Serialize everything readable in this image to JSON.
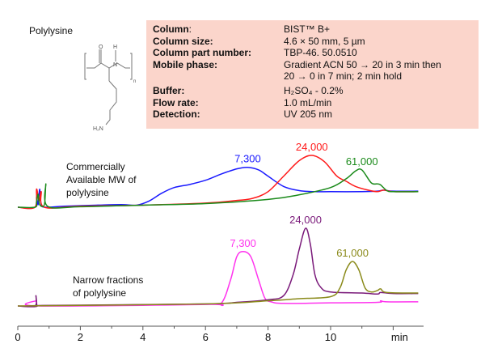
{
  "compound": "Polylysine",
  "conditions": [
    {
      "label": "Column",
      "suffix": ":",
      "value": "BIST™ B+"
    },
    {
      "label": "Column size:",
      "value": "4.6 × 50 mm, 5 µm"
    },
    {
      "label": "Column part number:",
      "value": "TBP-46. 50.0510"
    },
    {
      "label": "Mobile phase:",
      "value": "Gradient ACN 50 → 20 in 3 min then",
      "value2": "20 → 0 in 7 min; 2 min hold"
    },
    {
      "label": "Buffer:",
      "value": "H₂SO₄ - 0.2%"
    },
    {
      "label": "Flow rate:",
      "value": "1.0 mL/min"
    },
    {
      "label": "Detection:",
      "value": "UV 205 nm"
    }
  ],
  "structure_labels": {
    "o": "O",
    "h": "H",
    "n": "N",
    "sub": "n",
    "amine": "H₂N"
  },
  "chart_data": {
    "type": "line",
    "xlabel": "min",
    "xlim": [
      0,
      12.8
    ],
    "xticks": [
      "0",
      "2",
      "4",
      "6",
      "8",
      "10"
    ],
    "grid": false,
    "panels": [
      {
        "annotation": [
          "Commercially",
          "Available  MW of",
          "polylysine"
        ],
        "series": [
          {
            "name": "7,300",
            "color": "#1a1aff",
            "peak_time": 7.35,
            "points": [
              [
                0,
                0
              ],
              [
                0.55,
                0
              ],
              [
                0.6,
                0.2
              ],
              [
                0.65,
                0.05
              ],
              [
                0.7,
                0.35
              ],
              [
                0.75,
                0.05
              ],
              [
                0.9,
                0
              ],
              [
                1.5,
                0.02
              ],
              [
                2.5,
                0.04
              ],
              [
                3.3,
                0.05
              ],
              [
                3.8,
                0.04
              ],
              [
                4.2,
                0.12
              ],
              [
                4.6,
                0.27
              ],
              [
                5,
                0.38
              ],
              [
                5.5,
                0.44
              ],
              [
                6,
                0.52
              ],
              [
                6.5,
                0.64
              ],
              [
                7,
                0.74
              ],
              [
                7.35,
                0.77
              ],
              [
                7.7,
                0.72
              ],
              [
                8,
                0.6
              ],
              [
                8.5,
                0.4
              ],
              [
                9,
                0.32
              ],
              [
                9.5,
                0.3
              ],
              [
                10,
                0.3
              ],
              [
                11,
                0.3
              ],
              [
                11.5,
                0.31
              ],
              [
                11.7,
                0.33
              ],
              [
                12,
                0.31
              ],
              [
                12.8,
                0.31
              ]
            ]
          },
          {
            "name": "24,000",
            "color": "#ff1a1a",
            "peak_time": 9.4,
            "points": [
              [
                0,
                0
              ],
              [
                0.55,
                0
              ],
              [
                0.6,
                0.35
              ],
              [
                0.68,
                0.12
              ],
              [
                0.75,
                0.3
              ],
              [
                0.85,
                0
              ],
              [
                2,
                0.02
              ],
              [
                4,
                0.04
              ],
              [
                6,
                0.08
              ],
              [
                7,
                0.13
              ],
              [
                7.5,
                0.17
              ],
              [
                8,
                0.3
              ],
              [
                8.5,
                0.6
              ],
              [
                9,
                0.9
              ],
              [
                9.4,
                1.0
              ],
              [
                9.8,
                0.88
              ],
              [
                10.2,
                0.6
              ],
              [
                10.5,
                0.5
              ],
              [
                10.8,
                0.4
              ],
              [
                11.2,
                0.33
              ],
              [
                11.5,
                0.3
              ],
              [
                11.7,
                0.33
              ],
              [
                12,
                0.3
              ],
              [
                12.8,
                0.3
              ]
            ]
          },
          {
            "name": "61,000",
            "color": "#1a8a1a",
            "peak_time": 11.0,
            "points": [
              [
                0,
                0
              ],
              [
                0.55,
                0
              ],
              [
                0.6,
                0.1
              ],
              [
                0.65,
                0.25
              ],
              [
                0.7,
                0.05
              ],
              [
                0.85,
                0.05
              ],
              [
                0.9,
                0.45
              ],
              [
                0.95,
                0.02
              ],
              [
                2,
                0.01
              ],
              [
                4,
                0.04
              ],
              [
                6,
                0.07
              ],
              [
                8,
                0.15
              ],
              [
                9,
                0.24
              ],
              [
                10,
                0.38
              ],
              [
                10.5,
                0.55
              ],
              [
                10.8,
                0.7
              ],
              [
                11.0,
                0.72
              ],
              [
                11.3,
                0.47
              ],
              [
                11.5,
                0.45
              ],
              [
                11.6,
                0.43
              ],
              [
                11.8,
                0.32
              ],
              [
                12,
                0.3
              ],
              [
                12.8,
                0.3
              ]
            ]
          }
        ]
      },
      {
        "annotation": [
          "Narrow fractions",
          "of polylysine"
        ],
        "series": [
          {
            "name": "7,300",
            "color": "#ff33ee",
            "peak_time": 7.2,
            "points": [
              [
                0,
                0
              ],
              [
                0.55,
                0
              ],
              [
                0.6,
                0.1
              ],
              [
                0.65,
                0
              ],
              [
                6,
                0.03
              ],
              [
                6.5,
                0.05
              ],
              [
                6.8,
                0.5
              ],
              [
                7.0,
                0.95
              ],
              [
                7.2,
                1.05
              ],
              [
                7.45,
                0.95
              ],
              [
                7.7,
                0.5
              ],
              [
                7.9,
                0.15
              ],
              [
                8.1,
                0.08
              ],
              [
                8.5,
                0.05
              ],
              [
                10,
                0.06
              ],
              [
                11.5,
                0.07
              ],
              [
                11.6,
                0.1
              ],
              [
                11.8,
                0.08
              ],
              [
                12.8,
                0.08
              ]
            ]
          },
          {
            "name": "24,000",
            "color": "#7a1a7a",
            "peak_time": 9.2,
            "points": [
              [
                0,
                0
              ],
              [
                0.55,
                0
              ],
              [
                0.58,
                0.2
              ],
              [
                0.62,
                0
              ],
              [
                0.8,
                0.01
              ],
              [
                6,
                0.04
              ],
              [
                7,
                0.07
              ],
              [
                8,
                0.12
              ],
              [
                8.5,
                0.2
              ],
              [
                8.8,
                0.6
              ],
              [
                9.0,
                1.1
              ],
              [
                9.2,
                1.5
              ],
              [
                9.35,
                1.2
              ],
              [
                9.5,
                0.6
              ],
              [
                9.7,
                0.35
              ],
              [
                10,
                0.27
              ],
              [
                11,
                0.25
              ],
              [
                11.5,
                0.23
              ],
              [
                11.6,
                0.26
              ],
              [
                12,
                0.24
              ],
              [
                12.8,
                0.24
              ]
            ]
          },
          {
            "name": "61,000",
            "color": "#8a8a1a",
            "peak_time": 10.7,
            "points": [
              [
                0,
                0
              ],
              [
                6,
                0.04
              ],
              [
                8,
                0.1
              ],
              [
                9,
                0.14
              ],
              [
                10,
                0.18
              ],
              [
                10.3,
                0.35
              ],
              [
                10.5,
                0.7
              ],
              [
                10.7,
                0.86
              ],
              [
                10.9,
                0.7
              ],
              [
                11.1,
                0.35
              ],
              [
                11.3,
                0.27
              ],
              [
                11.5,
                0.3
              ],
              [
                11.6,
                0.33
              ],
              [
                11.8,
                0.26
              ],
              [
                12.8,
                0.25
              ]
            ]
          }
        ]
      }
    ]
  }
}
